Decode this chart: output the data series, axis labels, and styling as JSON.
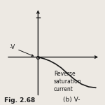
{
  "fig_label": "Fig. 2.68",
  "sub_label": "(b) V-",
  "neg_v_label": "-V",
  "annotation": "Reverse\nsaturation\ncurrent",
  "background_color": "#ede9e3",
  "line_color": "#1a1a1a",
  "axis_line_color": "#1a1a1a",
  "font_color": "#1a1a1a",
  "label_fontsize": 6.0,
  "fig_label_fontsize": 6.5,
  "curve_x": [
    0.0,
    0.4,
    0.8,
    1.2,
    1.6,
    2.0,
    2.5,
    3.0,
    3.5,
    4.0
  ],
  "curve_y": [
    0.0,
    -0.05,
    -0.12,
    -0.22,
    -0.35,
    -0.52,
    -0.72,
    -0.88,
    -0.97,
    -1.0
  ]
}
